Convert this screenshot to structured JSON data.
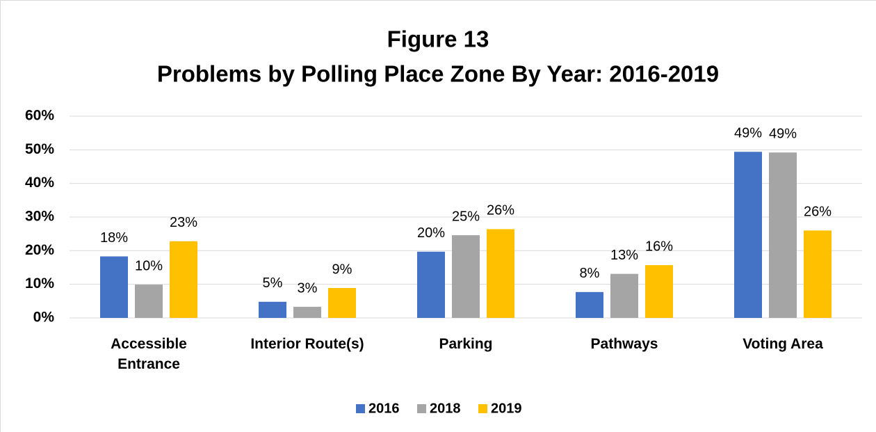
{
  "chart_data": {
    "type": "bar",
    "title": "Figure 13",
    "subtitle": "Problems by Polling Place Zone By Year: 2016-2019",
    "categories": [
      "Accessible Entrance",
      "Interior Route(s)",
      "Parking",
      "Pathways",
      "Voting Area"
    ],
    "series": [
      {
        "name": "2016",
        "color": "#4472c4",
        "values": [
          18.3,
          4.8,
          19.7,
          7.7,
          49.4
        ],
        "value_labels": [
          "18%",
          "5%",
          "20%",
          "8%",
          "49%"
        ]
      },
      {
        "name": "2018",
        "color": "#a5a5a5",
        "values": [
          9.9,
          3.3,
          24.6,
          13.1,
          49.2
        ],
        "value_labels": [
          "10%",
          "3%",
          "25%",
          "13%",
          "49%"
        ]
      },
      {
        "name": "2019",
        "color": "#ffc000",
        "values": [
          22.8,
          8.9,
          26.4,
          15.7,
          26.0
        ],
        "value_labels": [
          "23%",
          "9%",
          "26%",
          "16%",
          "26%"
        ]
      }
    ],
    "ylim": [
      0,
      60
    ],
    "yticks": [
      {
        "value": 0,
        "label": "0%"
      },
      {
        "value": 10,
        "label": "10%"
      },
      {
        "value": 20,
        "label": "20%"
      },
      {
        "value": 30,
        "label": "30%"
      },
      {
        "value": 40,
        "label": "40%"
      },
      {
        "value": 50,
        "label": "50%"
      },
      {
        "value": 60,
        "label": "60%"
      }
    ],
    "grid": true,
    "legend": "bottom"
  }
}
